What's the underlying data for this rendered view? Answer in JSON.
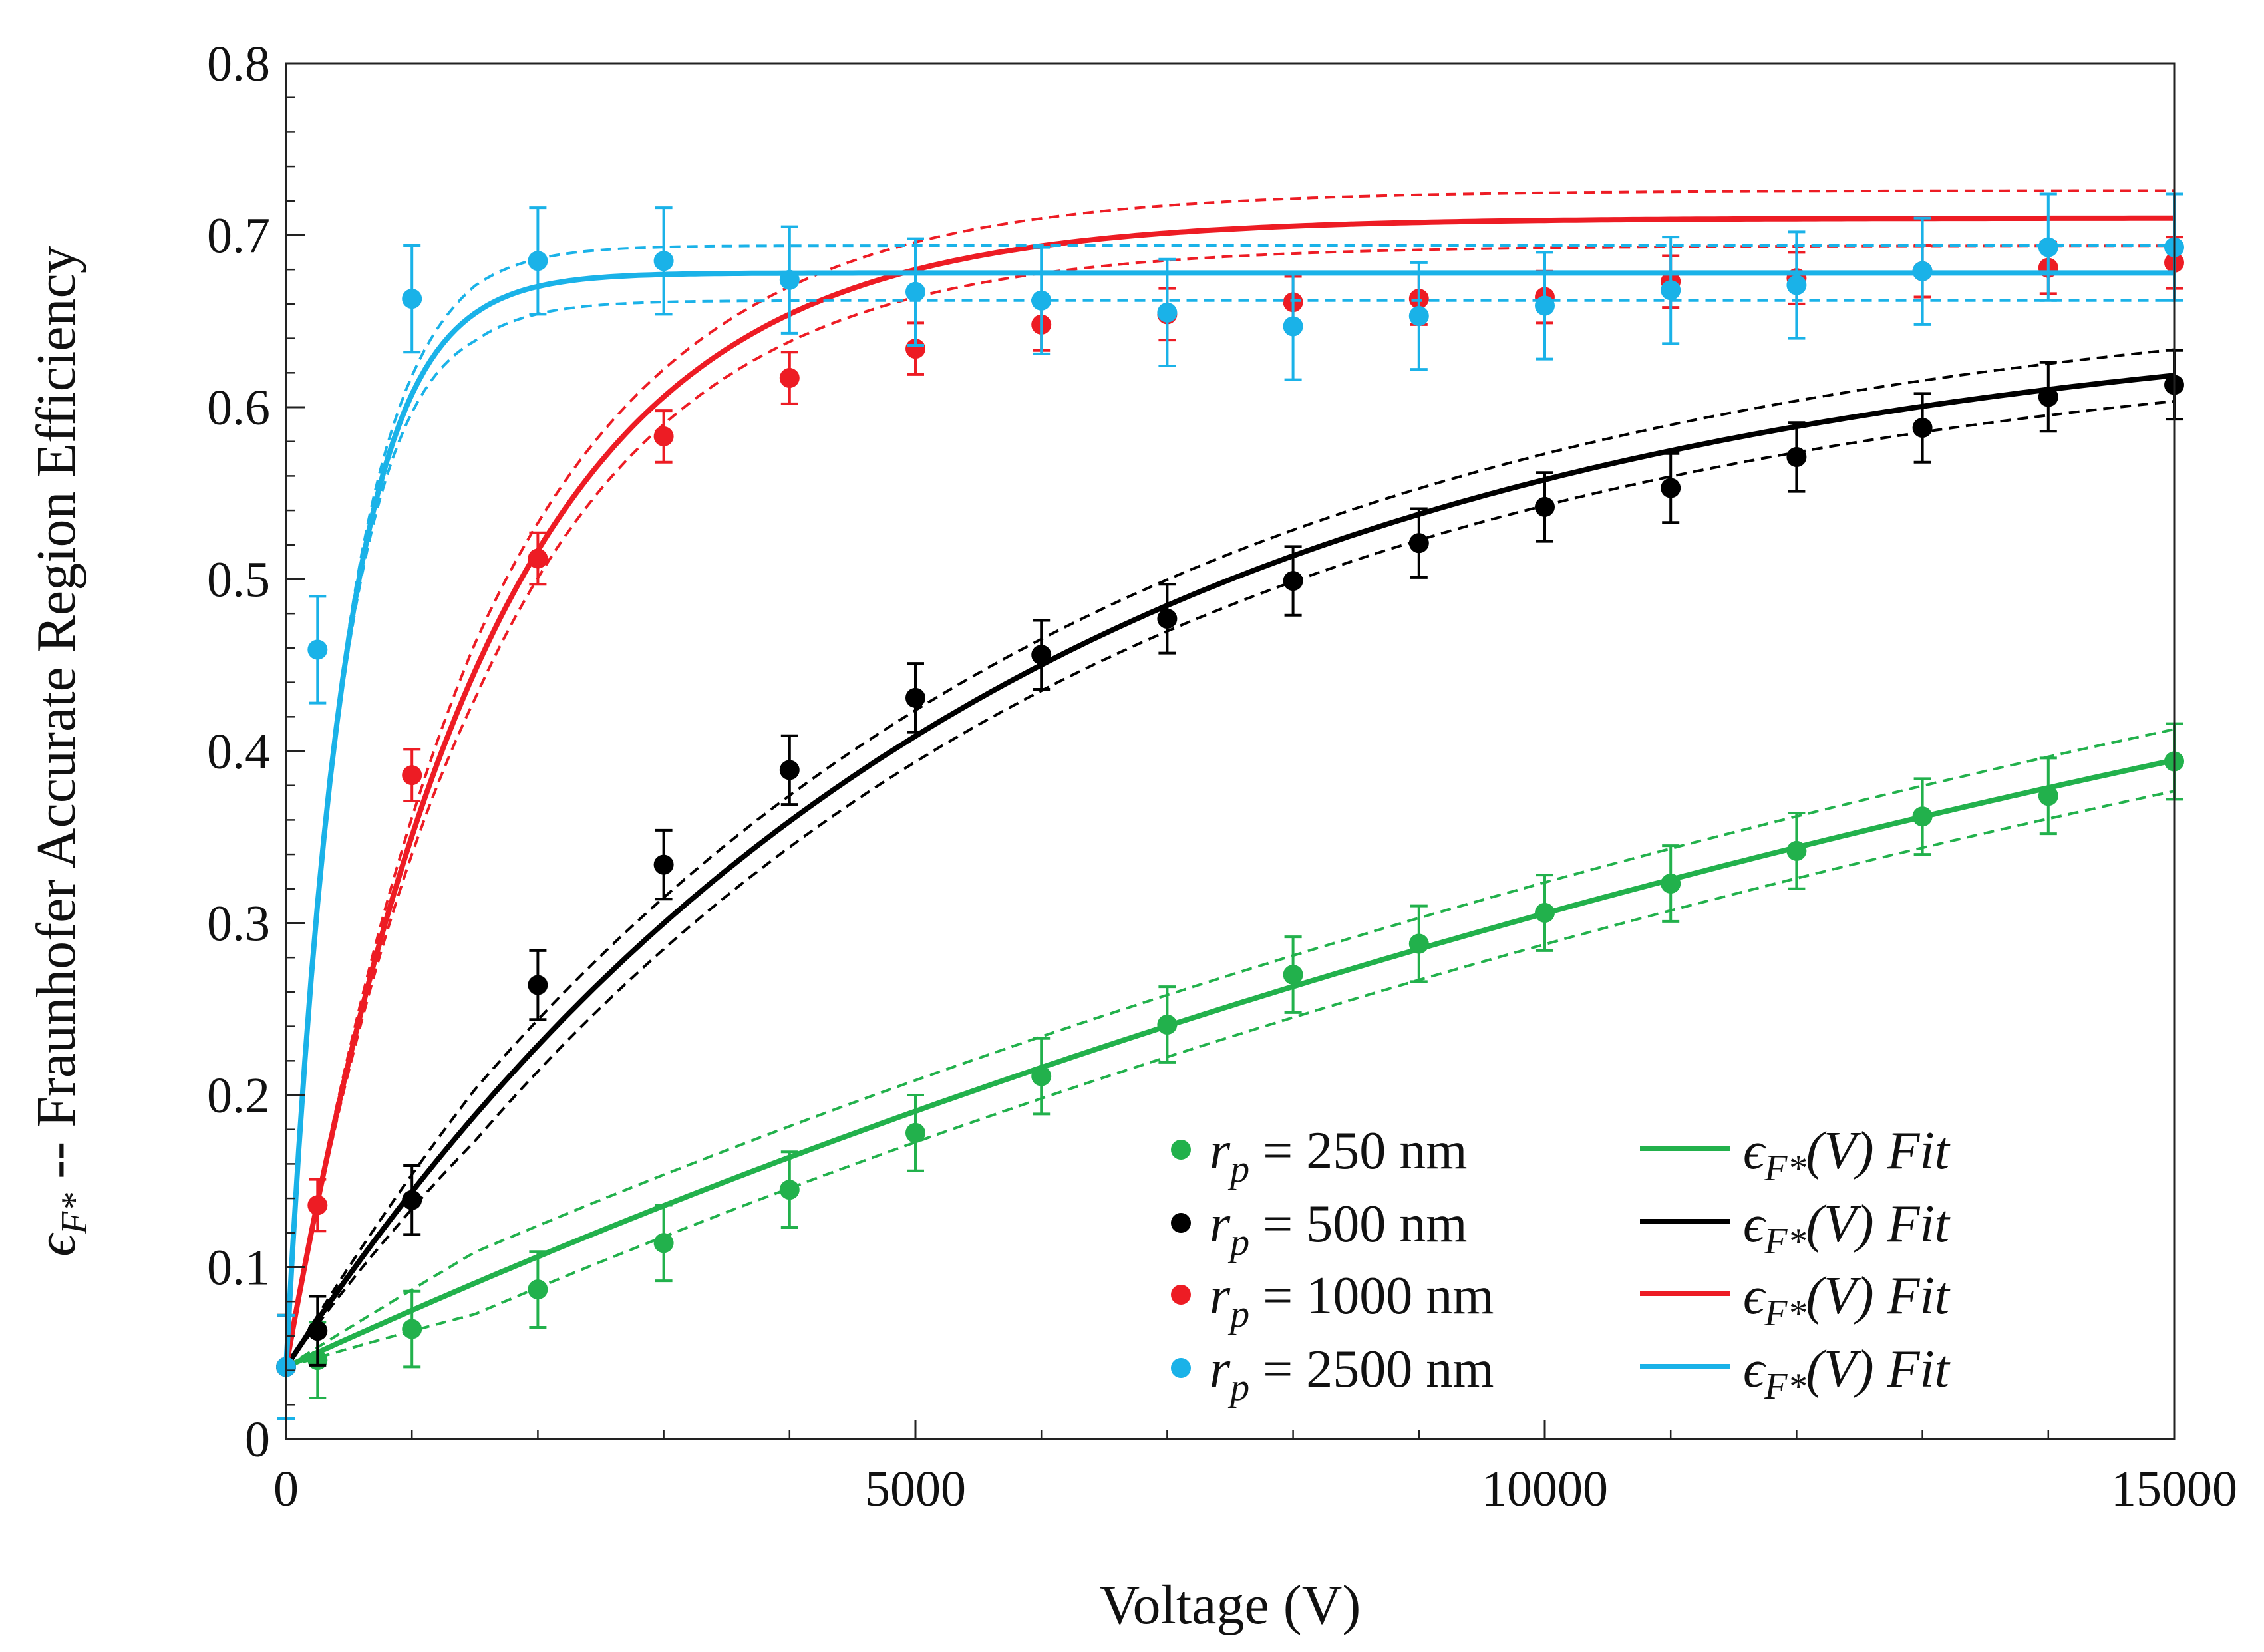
{
  "chart_data": {
    "type": "scatter",
    "title": "",
    "xlabel": "Voltage (V)",
    "ylabel": "ϵF* -- Fraunhofer Accurate Region Efficiency",
    "ylabel_symbol": "ϵ",
    "ylabel_symbol_sub": "F*",
    "ylabel_text": " -- Fraunhofer Accurate Region Efficiency",
    "xlim": [
      0,
      15000
    ],
    "ylim": [
      0,
      0.8
    ],
    "xticks": [
      "0",
      "5000",
      "10000",
      "15000"
    ],
    "xtick_values": [
      0,
      5000,
      10000,
      15000
    ],
    "yticks": [
      "0",
      "0.1",
      "0.2",
      "0.3",
      "0.4",
      "0.5",
      "0.6",
      "0.7",
      "0.8"
    ],
    "ytick_values": [
      0,
      0.1,
      0.2,
      0.3,
      0.4,
      0.5,
      0.6,
      0.7,
      0.8
    ],
    "grid": false,
    "legend_position": "bottom-right",
    "series": [
      {
        "name": "r_p = 250 nm",
        "legend_text": "= 250 nm",
        "fit_legend": "ϵF*(V) Fit",
        "color": "#22b14c",
        "x": [
          0,
          250,
          1000,
          2000,
          3000,
          4000,
          5000,
          6000,
          7000,
          8000,
          9000,
          10000,
          11000,
          12000,
          13000,
          14000,
          15000
        ],
        "y": [
          0.042,
          0.046,
          0.064,
          0.087,
          0.114,
          0.145,
          0.178,
          0.211,
          0.241,
          0.27,
          0.288,
          0.306,
          0.323,
          0.342,
          0.362,
          0.374,
          0.394
        ],
        "err": [
          0.03,
          0.022,
          0.022,
          0.022,
          0.022,
          0.022,
          0.022,
          0.022,
          0.022,
          0.022,
          0.022,
          0.022,
          0.022,
          0.022,
          0.022,
          0.022,
          0.022
        ],
        "fit": {
          "y0": 0.042,
          "ymax": 0.7,
          "k": 5.12e-05
        },
        "band": 0.018
      },
      {
        "name": "r_p = 500 nm",
        "legend_text": "= 500 nm",
        "fit_legend": "ϵF*(V) Fit",
        "color": "#000000",
        "x": [
          0,
          250,
          1000,
          2000,
          3000,
          4000,
          5000,
          6000,
          7000,
          8000,
          9000,
          10000,
          11000,
          12000,
          13000,
          14000,
          15000
        ],
        "y": [
          0.042,
          0.063,
          0.139,
          0.264,
          0.334,
          0.389,
          0.431,
          0.456,
          0.477,
          0.499,
          0.521,
          0.542,
          0.553,
          0.571,
          0.588,
          0.606,
          0.613
        ],
        "err": [
          0.03,
          0.02,
          0.02,
          0.02,
          0.02,
          0.02,
          0.02,
          0.02,
          0.02,
          0.02,
          0.02,
          0.02,
          0.02,
          0.02,
          0.02,
          0.02,
          0.02
        ],
        "fit": {
          "y0": 0.042,
          "ymax": 0.66,
          "k": 0.00018
        },
        "band": 0.015
      },
      {
        "name": "r_p = 1000 nm",
        "legend_text": "= 1000 nm",
        "fit_legend": "ϵF*(V) Fit",
        "color": "#ed1c24",
        "x": [
          0,
          250,
          1000,
          2000,
          3000,
          4000,
          5000,
          6000,
          7000,
          8000,
          9000,
          10000,
          11000,
          12000,
          13000,
          14000,
          15000
        ],
        "y": [
          0.042,
          0.136,
          0.386,
          0.512,
          0.583,
          0.617,
          0.634,
          0.648,
          0.654,
          0.661,
          0.663,
          0.664,
          0.673,
          0.675,
          0.679,
          0.681,
          0.684
        ],
        "err": [
          0.03,
          0.015,
          0.015,
          0.015,
          0.015,
          0.015,
          0.015,
          0.015,
          0.015,
          0.015,
          0.015,
          0.015,
          0.015,
          0.015,
          0.015,
          0.015,
          0.015
        ],
        "fit": {
          "y0": 0.042,
          "ymax": 0.71,
          "k": 0.00062
        },
        "band": 0.016
      },
      {
        "name": "r_p = 2500 nm",
        "legend_text": "= 2500 nm",
        "fit_legend": "ϵF*(V) Fit",
        "color": "#1ab2e8",
        "x": [
          0,
          250,
          1000,
          2000,
          3000,
          4000,
          5000,
          6000,
          7000,
          8000,
          9000,
          10000,
          11000,
          12000,
          13000,
          14000,
          15000
        ],
        "y": [
          0.042,
          0.459,
          0.663,
          0.685,
          0.685,
          0.674,
          0.667,
          0.662,
          0.655,
          0.647,
          0.653,
          0.659,
          0.668,
          0.671,
          0.679,
          0.693,
          0.693
        ],
        "err": [
          0.03,
          0.031,
          0.031,
          0.031,
          0.031,
          0.031,
          0.031,
          0.031,
          0.031,
          0.031,
          0.031,
          0.031,
          0.031,
          0.031,
          0.031,
          0.031,
          0.031
        ],
        "fit": {
          "y0": 0.042,
          "ymax": 0.678,
          "k": 0.0022
        },
        "band": 0.016
      }
    ]
  }
}
